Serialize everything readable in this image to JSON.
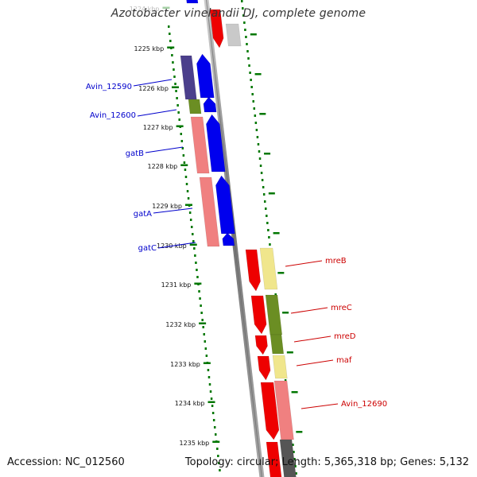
{
  "title": "Azotobacter vinelandii DJ, complete genome",
  "footer": {
    "accession": "Accession: NC_012560",
    "topology": "Topology: circular; Length: 5,365,318 bp; Genes: 5,132"
  },
  "kbp_ticks": [
    "1224 kbp",
    "1225 kbp",
    "1226 kbp",
    "1227 kbp",
    "1228 kbp",
    "1229 kbp",
    "1230 kbp",
    "1231 kbp",
    "1232 kbp",
    "1233 kbp",
    "1234 kbp",
    "1235 kbp"
  ],
  "genes_left": [
    {
      "label": "Avin_12590",
      "color": "#0000cc"
    },
    {
      "label": "Avin_12600",
      "color": "#0000cc"
    },
    {
      "label": "gatB",
      "color": "#0000cc"
    },
    {
      "label": "gatA",
      "color": "#0000cc"
    },
    {
      "label": "gatC",
      "color": "#0000cc"
    }
  ],
  "genes_right": [
    {
      "label": "mreB",
      "color": "#cc0000"
    },
    {
      "label": "mreC",
      "color": "#cc0000"
    },
    {
      "label": "mreD",
      "color": "#cc0000"
    },
    {
      "label": "maf",
      "color": "#cc0000"
    },
    {
      "label": "Avin_12690",
      "color": "#cc0000"
    }
  ],
  "colors": {
    "blue_gene": "#0000ee",
    "red_gene": "#ee0000",
    "pink_cog": "#f08080",
    "purple_cog": "#4b3f8c",
    "olive_cog": "#6b8e23",
    "yellow_cog": "#f0e68c",
    "grey_gene": "#c0c0c0",
    "dark_grey": "#555555",
    "green_dots": "#007700",
    "backbone": "#888888"
  }
}
